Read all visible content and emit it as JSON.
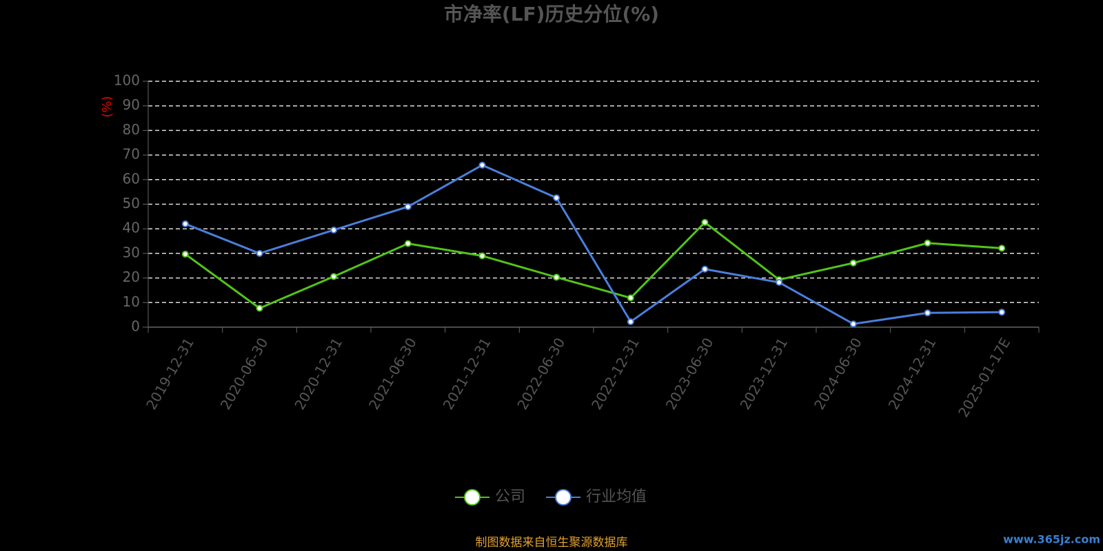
{
  "chart_data": {
    "type": "line",
    "title": "市净率(LF)历史分位(%)",
    "y_label": "(%)",
    "categories": [
      "2019-12-31",
      "2020-06-30",
      "2020-12-31",
      "2021-06-30",
      "2021-12-31",
      "2022-06-30",
      "2022-12-31",
      "2023-06-30",
      "2023-12-31",
      "2024-06-30",
      "2024-12-31",
      "2025-01-17E"
    ],
    "series": [
      {
        "name": "公司",
        "color": "#52c41a",
        "values": [
          29.7,
          7.7,
          20.6,
          34,
          29,
          20.3,
          11.9,
          42.6,
          19.3,
          26.1,
          34.2,
          32.1
        ]
      },
      {
        "name": "行业均值",
        "color": "#4a7fdc",
        "values": [
          42,
          30,
          39.5,
          49,
          65.9,
          52.6,
          2.2,
          23.6,
          18.2,
          1.3,
          5.8,
          6.1
        ]
      }
    ],
    "ylim": [
      0,
      100
    ],
    "yticks": [
      0,
      10,
      20,
      30,
      40,
      50,
      60,
      70,
      80,
      90,
      100
    ],
    "grid": true,
    "source": "制图数据来自恒生聚源数据库",
    "watermark": "www.365jz.com"
  }
}
